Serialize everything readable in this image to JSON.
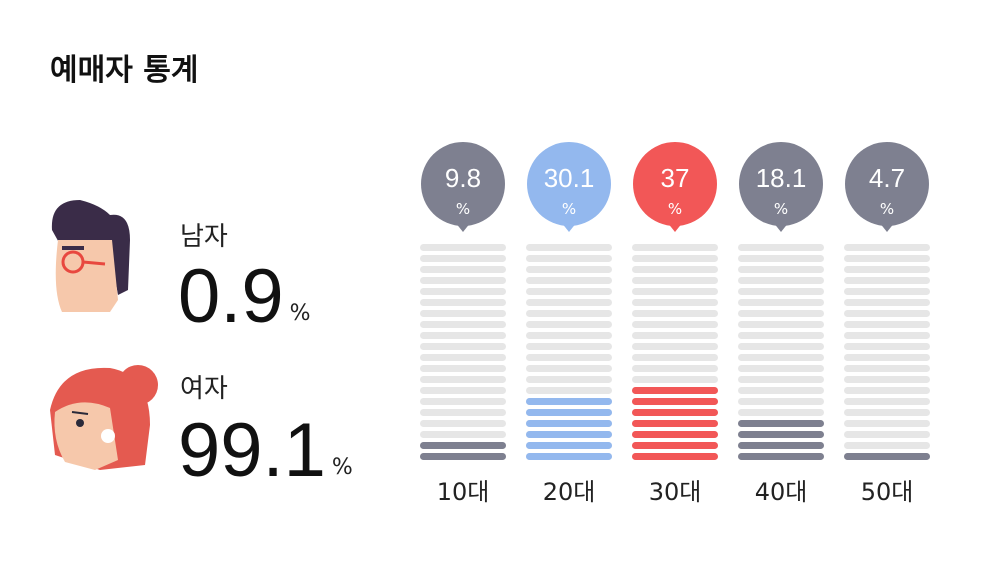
{
  "title": "예매자 통계",
  "gender": {
    "unit": "%",
    "items": [
      {
        "label": "남자",
        "value": 0.9
      },
      {
        "label": "여자",
        "value": 99.1
      }
    ]
  },
  "chart_data": {
    "type": "bar",
    "unit": "%",
    "categories": [
      "10대",
      "20대",
      "30대",
      "40대",
      "50대"
    ],
    "values": [
      9.8,
      30.1,
      37,
      18.1,
      4.7
    ],
    "colors": [
      "#7e8090",
      "#93b8ee",
      "#f25757",
      "#7e8090",
      "#7e8090"
    ]
  }
}
